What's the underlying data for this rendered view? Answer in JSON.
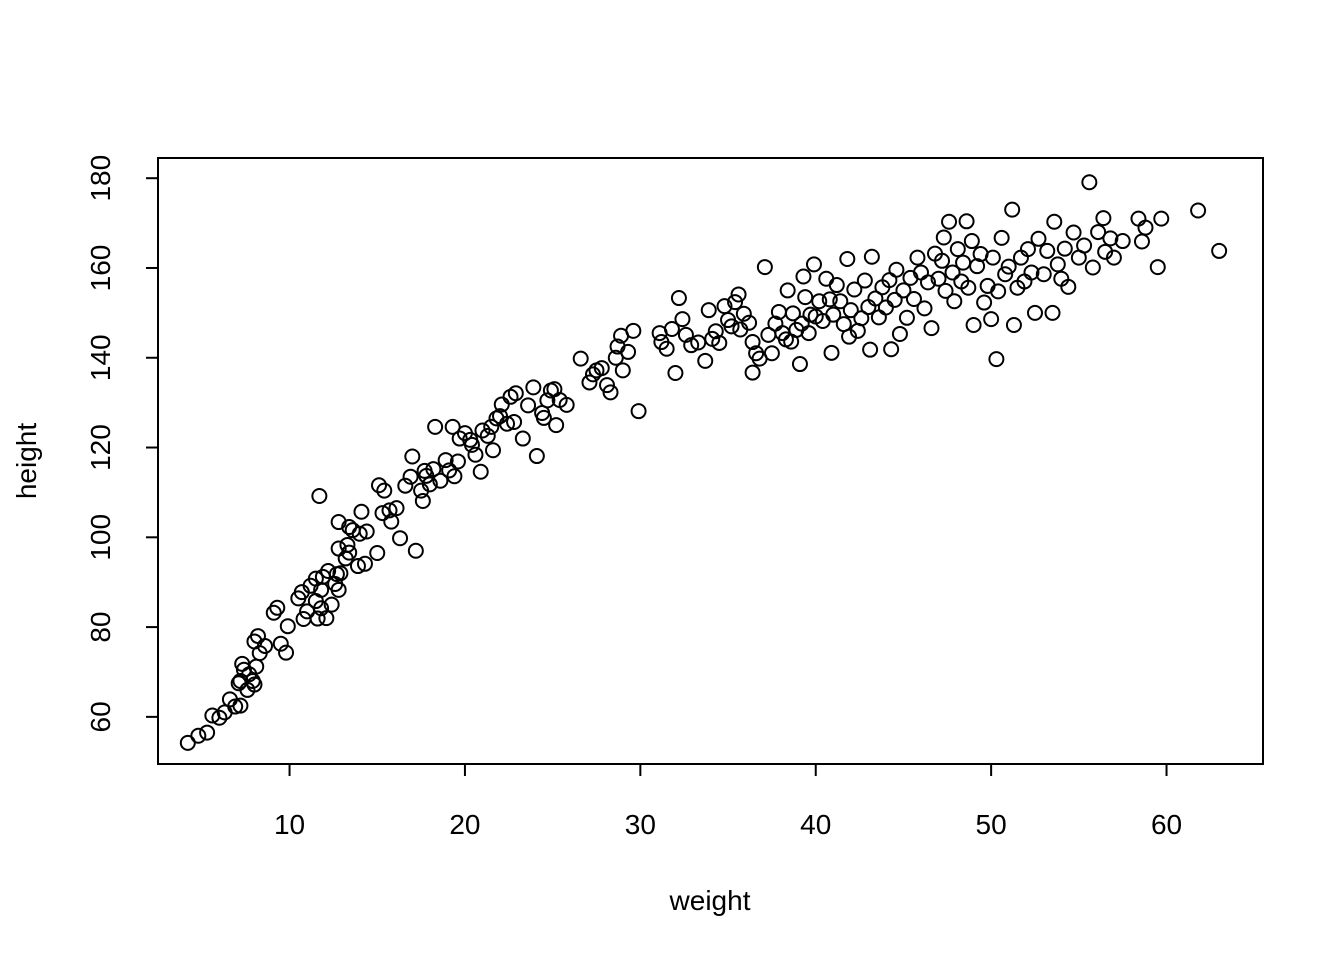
{
  "chart_data": {
    "type": "scatter",
    "title": "",
    "xlabel": "weight",
    "ylabel": "height",
    "xlim": [
      2.5,
      65.5
    ],
    "ylim": [
      49.5,
      184.5
    ],
    "xticks": [
      10,
      20,
      30,
      40,
      50,
      60
    ],
    "yticks": [
      60,
      80,
      100,
      120,
      140,
      160,
      180
    ],
    "grid": false,
    "legend": "none",
    "marker_color": "#000000",
    "points": [
      [
        4.2,
        54.2
      ],
      [
        4.8,
        55.8
      ],
      [
        5.3,
        56.5
      ],
      [
        5.6,
        60.3
      ],
      [
        6.0,
        59.8
      ],
      [
        6.3,
        61.0
      ],
      [
        6.6,
        63.9
      ],
      [
        6.9,
        62.3
      ],
      [
        7.2,
        62.5
      ],
      [
        7.1,
        67.5
      ],
      [
        7.2,
        68.0
      ],
      [
        7.4,
        70.5
      ],
      [
        7.3,
        71.8
      ],
      [
        7.6,
        66.0
      ],
      [
        7.7,
        69.5
      ],
      [
        7.9,
        68.0
      ],
      [
        8.0,
        67.2
      ],
      [
        8.1,
        71.2
      ],
      [
        8.0,
        76.8
      ],
      [
        8.2,
        78.0
      ],
      [
        8.3,
        74.2
      ],
      [
        8.6,
        75.8
      ],
      [
        9.1,
        83.2
      ],
      [
        9.3,
        84.3
      ],
      [
        9.5,
        76.3
      ],
      [
        9.8,
        74.3
      ],
      [
        9.9,
        80.2
      ],
      [
        10.5,
        86.4
      ],
      [
        10.7,
        87.8
      ],
      [
        10.8,
        81.8
      ],
      [
        11.0,
        83.5
      ],
      [
        11.2,
        89.2
      ],
      [
        11.5,
        85.8
      ],
      [
        11.5,
        90.8
      ],
      [
        11.6,
        81.9
      ],
      [
        11.8,
        84.2
      ],
      [
        11.8,
        88.3
      ],
      [
        11.9,
        91.2
      ],
      [
        12.1,
        82.0
      ],
      [
        12.2,
        92.5
      ],
      [
        12.4,
        85.0
      ],
      [
        12.6,
        89.6
      ],
      [
        12.7,
        91.8
      ],
      [
        12.8,
        88.3
      ],
      [
        12.9,
        92.0
      ],
      [
        12.8,
        97.5
      ],
      [
        12.8,
        103.4
      ],
      [
        13.2,
        95.3
      ],
      [
        13.4,
        96.6
      ],
      [
        13.3,
        98.3
      ],
      [
        13.4,
        102.3
      ],
      [
        13.6,
        101.6
      ],
      [
        11.7,
        109.2
      ],
      [
        13.9,
        93.6
      ],
      [
        14.0,
        100.8
      ],
      [
        14.1,
        105.7
      ],
      [
        14.3,
        94.1
      ],
      [
        14.4,
        101.3
      ],
      [
        15.0,
        96.5
      ],
      [
        15.1,
        111.6
      ],
      [
        15.3,
        105.4
      ],
      [
        15.4,
        110.4
      ],
      [
        15.7,
        106.0
      ],
      [
        15.8,
        103.5
      ],
      [
        16.1,
        106.5
      ],
      [
        16.3,
        99.8
      ],
      [
        16.6,
        111.5
      ],
      [
        16.9,
        113.5
      ],
      [
        17.0,
        118.0
      ],
      [
        17.2,
        97.0
      ],
      [
        17.5,
        110.4
      ],
      [
        17.6,
        108.1
      ],
      [
        17.7,
        114.8
      ],
      [
        17.8,
        113.7
      ],
      [
        18.0,
        111.8
      ],
      [
        18.2,
        115.2
      ],
      [
        18.3,
        124.6
      ],
      [
        18.6,
        112.6
      ],
      [
        18.9,
        117.2
      ],
      [
        19.1,
        114.9
      ],
      [
        19.3,
        124.6
      ],
      [
        19.4,
        113.6
      ],
      [
        19.6,
        116.9
      ],
      [
        19.7,
        122.0
      ],
      [
        20.0,
        123.2
      ],
      [
        20.3,
        121.7
      ],
      [
        20.4,
        120.6
      ],
      [
        20.6,
        118.4
      ],
      [
        20.9,
        114.6
      ],
      [
        21.0,
        123.8
      ],
      [
        21.3,
        122.6
      ],
      [
        21.5,
        124.6
      ],
      [
        21.6,
        119.4
      ],
      [
        21.8,
        126.5
      ],
      [
        22.0,
        127.0
      ],
      [
        22.1,
        129.6
      ],
      [
        22.4,
        125.3
      ],
      [
        22.6,
        131.3
      ],
      [
        22.8,
        125.7
      ],
      [
        22.9,
        132.1
      ],
      [
        23.3,
        122.0
      ],
      [
        23.6,
        129.4
      ],
      [
        23.9,
        133.4
      ],
      [
        24.1,
        118.1
      ],
      [
        24.4,
        127.7
      ],
      [
        24.5,
        126.6
      ],
      [
        24.7,
        130.5
      ],
      [
        24.9,
        132.7
      ],
      [
        25.1,
        133.0
      ],
      [
        25.2,
        125.0
      ],
      [
        25.4,
        130.6
      ],
      [
        25.8,
        129.5
      ],
      [
        26.6,
        139.8
      ],
      [
        27.1,
        134.5
      ],
      [
        27.3,
        136.3
      ],
      [
        27.5,
        137.2
      ],
      [
        27.8,
        137.7
      ],
      [
        28.1,
        133.9
      ],
      [
        28.3,
        132.3
      ],
      [
        28.6,
        140.0
      ],
      [
        28.7,
        142.5
      ],
      [
        28.9,
        144.9
      ],
      [
        29.0,
        137.2
      ],
      [
        29.3,
        141.3
      ],
      [
        29.6,
        146.0
      ],
      [
        29.9,
        128.1
      ],
      [
        31.1,
        145.5
      ],
      [
        31.2,
        143.5
      ],
      [
        31.5,
        142.0
      ],
      [
        31.8,
        146.4
      ],
      [
        32.0,
        136.6
      ],
      [
        32.2,
        153.3
      ],
      [
        32.4,
        148.6
      ],
      [
        32.6,
        145.1
      ],
      [
        32.9,
        142.8
      ],
      [
        33.3,
        143.4
      ],
      [
        33.7,
        139.3
      ],
      [
        33.9,
        150.6
      ],
      [
        34.1,
        144.2
      ],
      [
        34.3,
        145.9
      ],
      [
        34.5,
        143.3
      ],
      [
        34.8,
        151.5
      ],
      [
        35.0,
        148.4
      ],
      [
        35.2,
        147.0
      ],
      [
        35.4,
        152.4
      ],
      [
        35.6,
        154.1
      ],
      [
        35.7,
        146.3
      ],
      [
        35.9,
        149.8
      ],
      [
        36.2,
        147.8
      ],
      [
        36.4,
        143.5
      ],
      [
        36.4,
        136.7
      ],
      [
        36.6,
        141.0
      ],
      [
        36.8,
        139.8
      ],
      [
        37.1,
        160.2
      ],
      [
        37.3,
        145.1
      ],
      [
        37.5,
        141.0
      ],
      [
        37.7,
        147.6
      ],
      [
        37.9,
        150.2
      ],
      [
        38.1,
        145.5
      ],
      [
        38.3,
        144.1
      ],
      [
        38.4,
        155.0
      ],
      [
        38.6,
        143.6
      ],
      [
        38.7,
        149.9
      ],
      [
        38.9,
        146.2
      ],
      [
        39.1,
        138.6
      ],
      [
        39.2,
        147.6
      ],
      [
        39.3,
        158.1
      ],
      [
        39.4,
        153.5
      ],
      [
        39.6,
        145.5
      ],
      [
        39.7,
        149.6
      ],
      [
        39.9,
        160.8
      ],
      [
        40.0,
        149.2
      ],
      [
        40.2,
        152.6
      ],
      [
        40.4,
        148.2
      ],
      [
        40.6,
        157.6
      ],
      [
        40.8,
        153.0
      ],
      [
        40.9,
        141.1
      ],
      [
        41.0,
        149.6
      ],
      [
        41.2,
        156.2
      ],
      [
        41.4,
        152.6
      ],
      [
        41.6,
        147.5
      ],
      [
        41.8,
        162.0
      ],
      [
        41.9,
        144.7
      ],
      [
        42.0,
        150.6
      ],
      [
        42.2,
        155.2
      ],
      [
        42.4,
        146.0
      ],
      [
        42.6,
        148.8
      ],
      [
        42.8,
        157.2
      ],
      [
        43.0,
        151.3
      ],
      [
        43.1,
        141.8
      ],
      [
        43.2,
        162.5
      ],
      [
        43.4,
        153.2
      ],
      [
        43.6,
        149.0
      ],
      [
        43.8,
        155.7
      ],
      [
        44.0,
        151.2
      ],
      [
        44.2,
        157.3
      ],
      [
        44.3,
        141.9
      ],
      [
        44.5,
        152.9
      ],
      [
        44.6,
        159.6
      ],
      [
        44.8,
        145.3
      ],
      [
        45.0,
        155.0
      ],
      [
        45.2,
        148.9
      ],
      [
        45.4,
        157.8
      ],
      [
        45.6,
        153.1
      ],
      [
        45.8,
        162.3
      ],
      [
        46.0,
        159.0
      ],
      [
        46.2,
        151.0
      ],
      [
        46.4,
        156.8
      ],
      [
        46.6,
        146.6
      ],
      [
        46.8,
        163.2
      ],
      [
        47.0,
        157.6
      ],
      [
        47.2,
        161.6
      ],
      [
        47.3,
        166.8
      ],
      [
        47.4,
        154.9
      ],
      [
        47.6,
        170.3
      ],
      [
        47.8,
        159.0
      ],
      [
        47.9,
        152.6
      ],
      [
        48.1,
        164.2
      ],
      [
        48.3,
        157.0
      ],
      [
        48.4,
        161.2
      ],
      [
        48.6,
        170.4
      ],
      [
        48.7,
        155.6
      ],
      [
        48.9,
        166.0
      ],
      [
        49.0,
        147.3
      ],
      [
        49.2,
        160.4
      ],
      [
        49.4,
        163.1
      ],
      [
        49.6,
        152.3
      ],
      [
        49.8,
        156.0
      ],
      [
        50.0,
        148.6
      ],
      [
        50.1,
        162.3
      ],
      [
        50.3,
        139.7
      ],
      [
        50.4,
        154.8
      ],
      [
        50.6,
        166.7
      ],
      [
        50.8,
        158.6
      ],
      [
        51.0,
        160.3
      ],
      [
        51.2,
        173.0
      ],
      [
        51.3,
        147.3
      ],
      [
        51.5,
        155.6
      ],
      [
        51.7,
        162.3
      ],
      [
        51.9,
        157.0
      ],
      [
        52.1,
        164.2
      ],
      [
        52.3,
        159.0
      ],
      [
        52.5,
        150.0
      ],
      [
        52.7,
        166.5
      ],
      [
        53.0,
        158.6
      ],
      [
        53.2,
        163.8
      ],
      [
        53.5,
        150.0
      ],
      [
        53.6,
        170.3
      ],
      [
        53.8,
        160.8
      ],
      [
        54.0,
        157.6
      ],
      [
        54.2,
        164.3
      ],
      [
        54.4,
        155.8
      ],
      [
        54.7,
        167.9
      ],
      [
        55.0,
        162.3
      ],
      [
        55.3,
        165.0
      ],
      [
        55.6,
        179.1
      ],
      [
        55.8,
        160.1
      ],
      [
        56.1,
        168.0
      ],
      [
        56.4,
        171.1
      ],
      [
        56.5,
        163.6
      ],
      [
        56.8,
        166.6
      ],
      [
        57.0,
        162.3
      ],
      [
        57.5,
        166.0
      ],
      [
        58.4,
        171.0
      ],
      [
        58.6,
        165.9
      ],
      [
        58.8,
        169.0
      ],
      [
        59.5,
        160.2
      ],
      [
        59.7,
        171.0
      ],
      [
        61.8,
        172.8
      ],
      [
        63.0,
        163.8
      ]
    ]
  }
}
